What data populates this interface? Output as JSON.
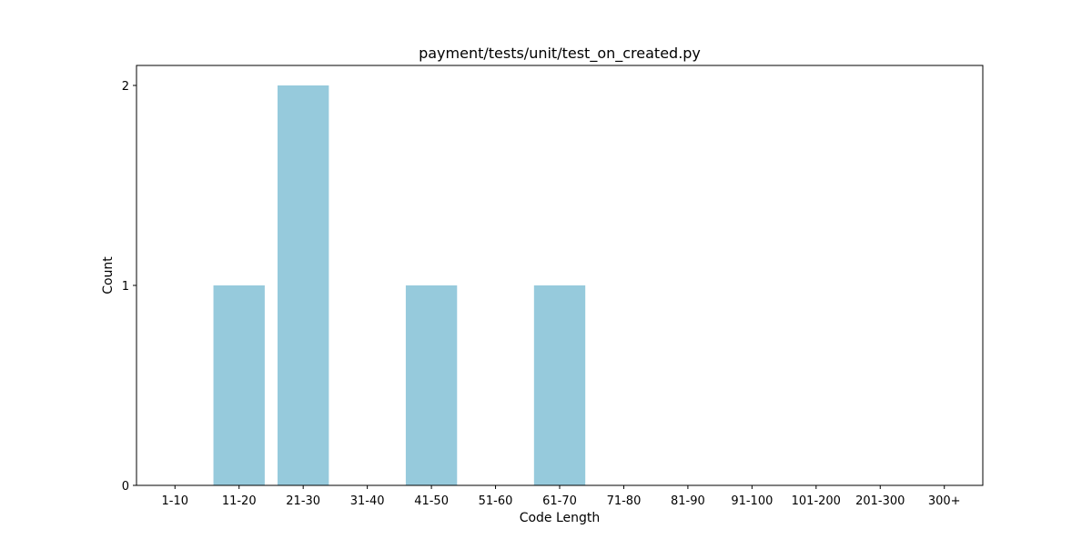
{
  "chart_data": {
    "type": "bar",
    "title": "payment/tests/unit/test_on_created.py",
    "xlabel": "Code Length",
    "ylabel": "Count",
    "categories": [
      "1-10",
      "11-20",
      "21-30",
      "31-40",
      "41-50",
      "51-60",
      "61-70",
      "71-80",
      "81-90",
      "91-100",
      "101-200",
      "201-300",
      "300+"
    ],
    "values": [
      0,
      1,
      2,
      0,
      1,
      0,
      1,
      0,
      0,
      0,
      0,
      0,
      0
    ],
    "ylim": [
      0,
      2.1
    ],
    "yticks": [
      0,
      1,
      2
    ],
    "grid": false,
    "bar_color": "#96cadc"
  }
}
